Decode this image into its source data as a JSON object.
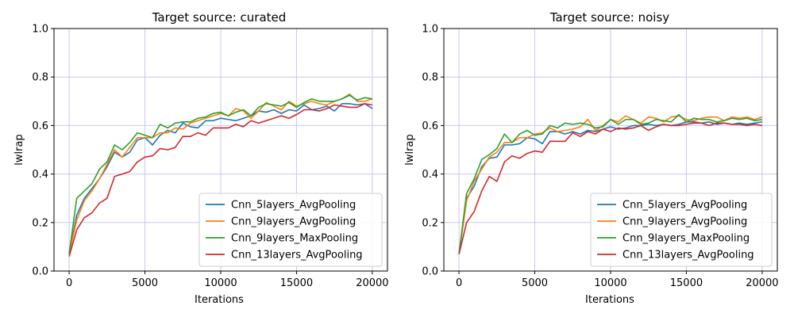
{
  "chart_data": [
    {
      "type": "line",
      "title": "Target source: curated",
      "xlabel": "Iterations",
      "ylabel": "lwlrap",
      "xlim": [
        -1000,
        21000
      ],
      "ylim": [
        0.0,
        1.0
      ],
      "xticks": [
        0,
        5000,
        10000,
        15000,
        20000
      ],
      "xtick_labels": [
        "0",
        "5000",
        "10000",
        "15000",
        "20000"
      ],
      "yticks": [
        0.0,
        0.2,
        0.4,
        0.6,
        0.8,
        1.0
      ],
      "ytick_labels": [
        "0.0",
        "0.2",
        "0.4",
        "0.6",
        "0.8",
        "1.0"
      ],
      "grid": true,
      "grid_color": "#c8c8f0",
      "legend_position": "lower-right",
      "x": [
        0,
        500,
        1000,
        1500,
        2000,
        2500,
        3000,
        3500,
        4000,
        4500,
        5000,
        5500,
        6000,
        6500,
        7000,
        7500,
        8000,
        8500,
        9000,
        9500,
        10000,
        10500,
        11000,
        11500,
        12000,
        12500,
        13000,
        13500,
        14000,
        14500,
        15000,
        15500,
        16000,
        16500,
        17000,
        17500,
        18000,
        18500,
        19000,
        19500,
        20000
      ],
      "series": [
        {
          "name": "Cnn_5layers_AvgPooling",
          "color": "#1f77b4",
          "values": [
            0.07,
            0.23,
            0.3,
            0.34,
            0.38,
            0.43,
            0.49,
            0.47,
            0.49,
            0.54,
            0.55,
            0.52,
            0.56,
            0.58,
            0.57,
            0.61,
            0.595,
            0.59,
            0.62,
            0.62,
            0.63,
            0.625,
            0.62,
            0.63,
            0.64,
            0.66,
            0.655,
            0.665,
            0.65,
            0.665,
            0.66,
            0.685,
            0.665,
            0.67,
            0.68,
            0.66,
            0.69,
            0.69,
            0.685,
            0.69,
            0.67
          ]
        },
        {
          "name": "Cnn_9layers_AvgPooling",
          "color": "#ff7f0e",
          "values": [
            0.07,
            0.21,
            0.29,
            0.33,
            0.38,
            0.44,
            0.5,
            0.47,
            0.51,
            0.55,
            0.55,
            0.55,
            0.57,
            0.57,
            0.59,
            0.585,
            0.61,
            0.62,
            0.63,
            0.64,
            0.65,
            0.64,
            0.67,
            0.66,
            0.63,
            0.66,
            0.695,
            0.68,
            0.665,
            0.7,
            0.68,
            0.69,
            0.7,
            0.69,
            0.685,
            0.7,
            0.71,
            0.73,
            0.7,
            0.7,
            0.71
          ]
        },
        {
          "name": "Cnn_9layers_MaxPooling",
          "color": "#2ca02c",
          "values": [
            0.07,
            0.3,
            0.33,
            0.36,
            0.42,
            0.45,
            0.52,
            0.5,
            0.53,
            0.57,
            0.56,
            0.55,
            0.605,
            0.59,
            0.61,
            0.615,
            0.615,
            0.63,
            0.635,
            0.65,
            0.655,
            0.64,
            0.655,
            0.665,
            0.64,
            0.675,
            0.69,
            0.685,
            0.68,
            0.695,
            0.675,
            0.695,
            0.71,
            0.7,
            0.7,
            0.7,
            0.71,
            0.725,
            0.705,
            0.715,
            0.71
          ]
        },
        {
          "name": "Cnn_13layers_AvgPooling",
          "color": "#d62728",
          "values": [
            0.06,
            0.17,
            0.22,
            0.24,
            0.28,
            0.3,
            0.39,
            0.4,
            0.41,
            0.45,
            0.47,
            0.475,
            0.505,
            0.5,
            0.51,
            0.555,
            0.555,
            0.57,
            0.56,
            0.59,
            0.59,
            0.59,
            0.605,
            0.595,
            0.62,
            0.61,
            0.62,
            0.63,
            0.64,
            0.63,
            0.645,
            0.665,
            0.665,
            0.66,
            0.67,
            0.685,
            0.68,
            0.675,
            0.675,
            0.69,
            0.685
          ]
        }
      ]
    },
    {
      "type": "line",
      "title": "Target source: noisy",
      "xlabel": "Iterations",
      "ylabel": "lwlrap",
      "xlim": [
        -1000,
        21000
      ],
      "ylim": [
        0.0,
        1.0
      ],
      "xticks": [
        0,
        5000,
        10000,
        15000,
        20000
      ],
      "xtick_labels": [
        "0",
        "5000",
        "10000",
        "15000",
        "20000"
      ],
      "yticks": [
        0.0,
        0.2,
        0.4,
        0.6,
        0.8,
        1.0
      ],
      "ytick_labels": [
        "0.0",
        "0.2",
        "0.4",
        "0.6",
        "0.8",
        "1.0"
      ],
      "grid": true,
      "grid_color": "#c8c8f0",
      "legend_position": "lower-right",
      "x": [
        0,
        500,
        1000,
        1500,
        2000,
        2500,
        3000,
        3500,
        4000,
        4500,
        5000,
        5500,
        6000,
        6500,
        7000,
        7500,
        8000,
        8500,
        9000,
        9500,
        10000,
        10500,
        11000,
        11500,
        12000,
        12500,
        13000,
        13500,
        14000,
        14500,
        15000,
        15500,
        16000,
        16500,
        17000,
        17500,
        18000,
        18500,
        19000,
        19500,
        20000
      ],
      "series": [
        {
          "name": "Cnn_5layers_AvgPooling",
          "color": "#1f77b4",
          "values": [
            0.07,
            0.3,
            0.35,
            0.43,
            0.465,
            0.47,
            0.52,
            0.52,
            0.525,
            0.55,
            0.545,
            0.525,
            0.575,
            0.575,
            0.565,
            0.575,
            0.565,
            0.58,
            0.575,
            0.585,
            0.595,
            0.585,
            0.59,
            0.6,
            0.6,
            0.605,
            0.6,
            0.605,
            0.6,
            0.605,
            0.615,
            0.615,
            0.61,
            0.615,
            0.605,
            0.61,
            0.605,
            0.61,
            0.605,
            0.61,
            0.615
          ]
        },
        {
          "name": "Cnn_9layers_AvgPooling",
          "color": "#ff7f0e",
          "values": [
            0.07,
            0.29,
            0.37,
            0.42,
            0.47,
            0.49,
            0.53,
            0.53,
            0.55,
            0.55,
            0.565,
            0.57,
            0.59,
            0.575,
            0.58,
            0.585,
            0.595,
            0.625,
            0.58,
            0.6,
            0.625,
            0.615,
            0.64,
            0.625,
            0.61,
            0.635,
            0.63,
            0.615,
            0.635,
            0.64,
            0.625,
            0.62,
            0.63,
            0.635,
            0.635,
            0.62,
            0.635,
            0.63,
            0.635,
            0.625,
            0.635
          ]
        },
        {
          "name": "Cnn_9layers_MaxPooling",
          "color": "#2ca02c",
          "values": [
            0.07,
            0.32,
            0.38,
            0.46,
            0.48,
            0.505,
            0.565,
            0.53,
            0.565,
            0.58,
            0.56,
            0.565,
            0.6,
            0.59,
            0.61,
            0.605,
            0.61,
            0.605,
            0.59,
            0.595,
            0.625,
            0.605,
            0.625,
            0.625,
            0.605,
            0.61,
            0.625,
            0.62,
            0.615,
            0.645,
            0.615,
            0.63,
            0.625,
            0.625,
            0.615,
            0.62,
            0.63,
            0.625,
            0.63,
            0.62,
            0.625
          ]
        },
        {
          "name": "Cnn_13layers_AvgPooling",
          "color": "#d62728",
          "values": [
            0.07,
            0.2,
            0.245,
            0.33,
            0.39,
            0.37,
            0.45,
            0.475,
            0.465,
            0.485,
            0.495,
            0.49,
            0.535,
            0.535,
            0.535,
            0.57,
            0.555,
            0.575,
            0.565,
            0.585,
            0.575,
            0.59,
            0.585,
            0.59,
            0.6,
            0.58,
            0.595,
            0.605,
            0.6,
            0.6,
            0.605,
            0.61,
            0.61,
            0.6,
            0.61,
            0.61,
            0.605,
            0.605,
            0.6,
            0.605,
            0.6
          ]
        }
      ]
    }
  ]
}
